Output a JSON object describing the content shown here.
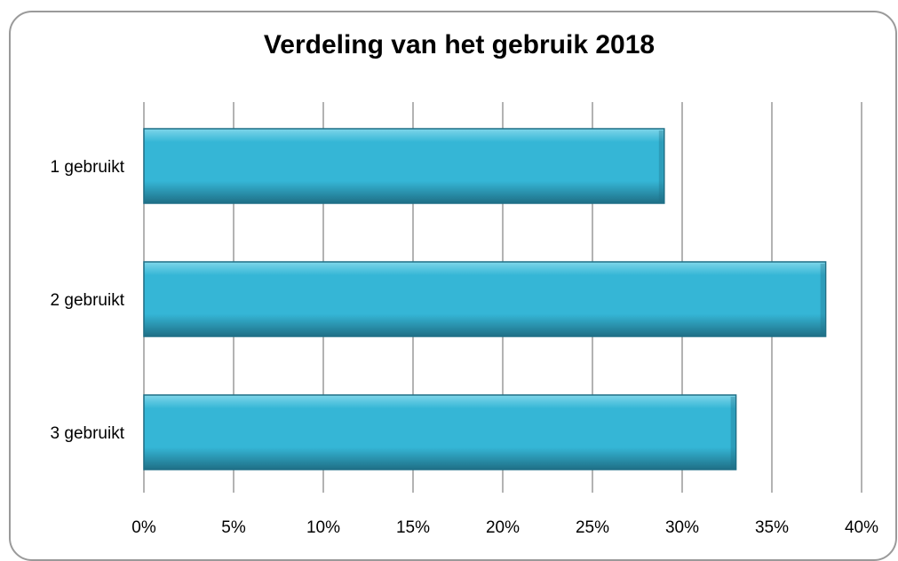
{
  "chart_data": {
    "type": "bar",
    "orientation": "horizontal",
    "title": "Verdeling van het gebruik 2018",
    "categories": [
      "1 gebruikt",
      "2 gebruikt",
      "3 gebruikt"
    ],
    "values": [
      29,
      38,
      33
    ],
    "value_unit": "%",
    "xlim": [
      0,
      40
    ],
    "x_ticks": [
      "0%",
      "5%",
      "10%",
      "15%",
      "20%",
      "25%",
      "30%",
      "35%",
      "40%"
    ],
    "grid": "vertical",
    "legend": "none",
    "colors": {
      "bar_fill": "#35b6d6",
      "bar_highlight": "#7fd6ea",
      "bar_edge": "#1f6f86",
      "grid": "#8a8a8a"
    }
  }
}
